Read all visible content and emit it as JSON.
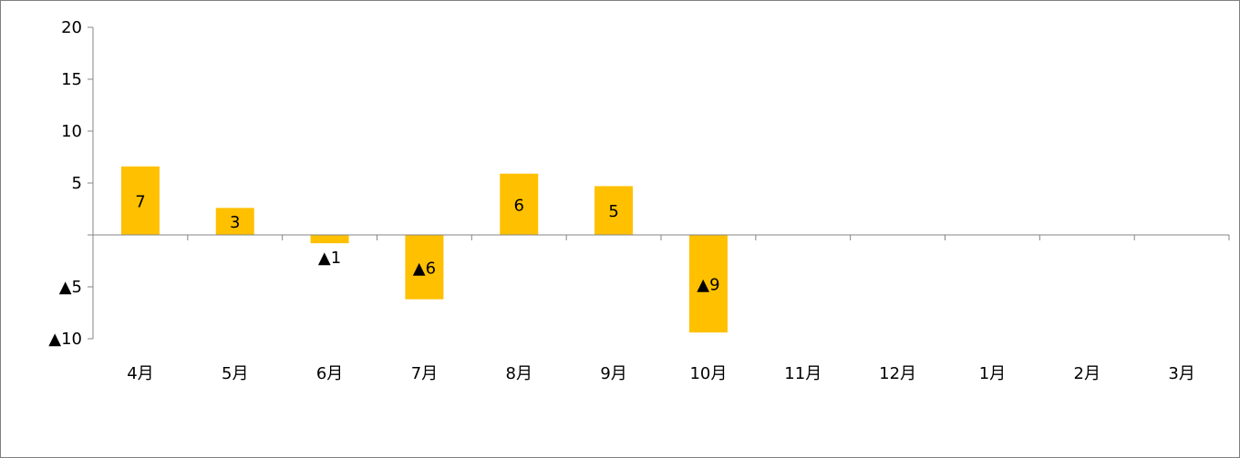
{
  "chart_data": {
    "type": "bar",
    "title": "",
    "xlabel": "",
    "ylabel": "",
    "categories": [
      "4月",
      "5月",
      "6月",
      "7月",
      "8月",
      "9月",
      "10月",
      "11月",
      "12月",
      "1月",
      "2月",
      "3月"
    ],
    "values": [
      6.6,
      2.6,
      -0.8,
      -6.2,
      5.9,
      4.7,
      -9.4,
      null,
      null,
      null,
      null,
      null
    ],
    "data_labels": [
      "7",
      "3",
      "▲1",
      "▲6",
      "6",
      "5",
      "▲9",
      "",
      "",
      "",
      "",
      ""
    ],
    "ylim": [
      -10,
      20
    ],
    "y_ticks": [
      20,
      15,
      10,
      5,
      0,
      -5,
      -10
    ],
    "y_tick_labels": [
      "20",
      "15",
      "10",
      "5",
      "",
      "▲5",
      "▲10"
    ],
    "grid": false,
    "legend": "none",
    "colors": {
      "bar": "#FFC000",
      "axis": "#868686",
      "frame": "#7f7f7f",
      "text": "#000000"
    }
  }
}
